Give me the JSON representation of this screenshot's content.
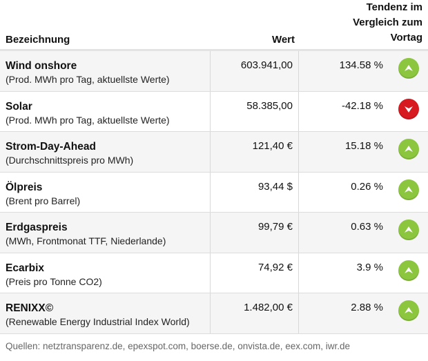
{
  "header": {
    "name": "Bezeichnung",
    "value": "Wert",
    "trend": "Tendenz im\nVergleich zum\nVortag"
  },
  "colors": {
    "up": "#8cc63f",
    "down": "#d71920"
  },
  "rows": [
    {
      "name": "Wind onshore",
      "sub": "(Prod. MWh pro Tag, aktuellste Werte)",
      "value": "603.941,00",
      "pct": "134.58 %",
      "trend": "up",
      "icon": "arrow-up-icon"
    },
    {
      "name": "Solar",
      "sub": "(Prod. MWh pro Tag, aktuellste Werte)",
      "value": "58.385,00",
      "pct": "-42.18 %",
      "trend": "down",
      "icon": "arrow-down-icon"
    },
    {
      "name": "Strom-Day-Ahead",
      "sub": "(Durchschnittspreis pro MWh)",
      "value": "121,40 €",
      "pct": "15.18 %",
      "trend": "up",
      "icon": "arrow-up-icon"
    },
    {
      "name": "Ölpreis",
      "sub": "(Brent pro Barrel)",
      "value": "93,44 $",
      "pct": "0.26 %",
      "trend": "up",
      "icon": "arrow-up-icon"
    },
    {
      "name": "Erdgaspreis",
      "sub": "(MWh, Frontmonat TTF, Niederlande)",
      "value": "99,79 €",
      "pct": "0.63 %",
      "trend": "up",
      "icon": "arrow-up-icon"
    },
    {
      "name": "Ecarbix",
      "sub": "(Preis pro Tonne CO2)",
      "value": "74,92 €",
      "pct": "3.9 %",
      "trend": "up",
      "icon": "arrow-up-icon"
    },
    {
      "name": "RENIXX©",
      "sub": "(Renewable Energy Industrial Index World)",
      "value": "1.482,00 €",
      "pct": "2.88 %",
      "trend": "up",
      "icon": "arrow-up-icon"
    }
  ],
  "footer": "Quellen: netztransparenz.de, epexspot.com, boerse.de, onvista.de, eex.com, iwr.de"
}
